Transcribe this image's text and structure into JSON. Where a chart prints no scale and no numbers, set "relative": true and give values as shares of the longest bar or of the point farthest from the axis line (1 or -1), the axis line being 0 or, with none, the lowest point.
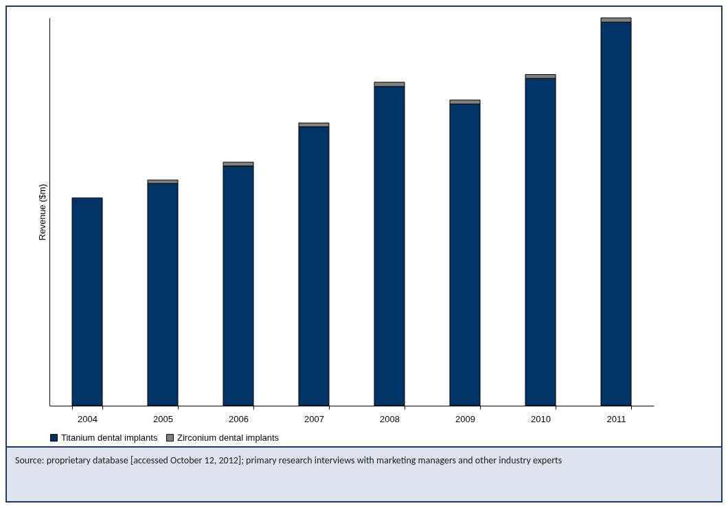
{
  "chart_data": {
    "type": "bar",
    "stacked": true,
    "relative": true,
    "ylabel": "Revenue ($m)",
    "legend": "bottom",
    "categories": [
      "2004",
      "2005",
      "2006",
      "2007",
      "2008",
      "2009",
      "2010",
      "2011"
    ],
    "series": [
      {
        "name": "Titanium dental implants",
        "color": "#003366",
        "values": [
          0.536,
          0.573,
          0.618,
          0.719,
          0.823,
          0.778,
          0.844,
          0.989
        ]
      },
      {
        "name": "Zirconium dental implants",
        "color": "#808080",
        "values": [
          null,
          0.009,
          0.01,
          0.01,
          0.011,
          0.01,
          0.01,
          0.011
        ]
      }
    ],
    "annotations": [
      "Source: proprietary database [accessed October 12, 2012]; primary research interviews with marketing managers and other industry experts"
    ]
  }
}
